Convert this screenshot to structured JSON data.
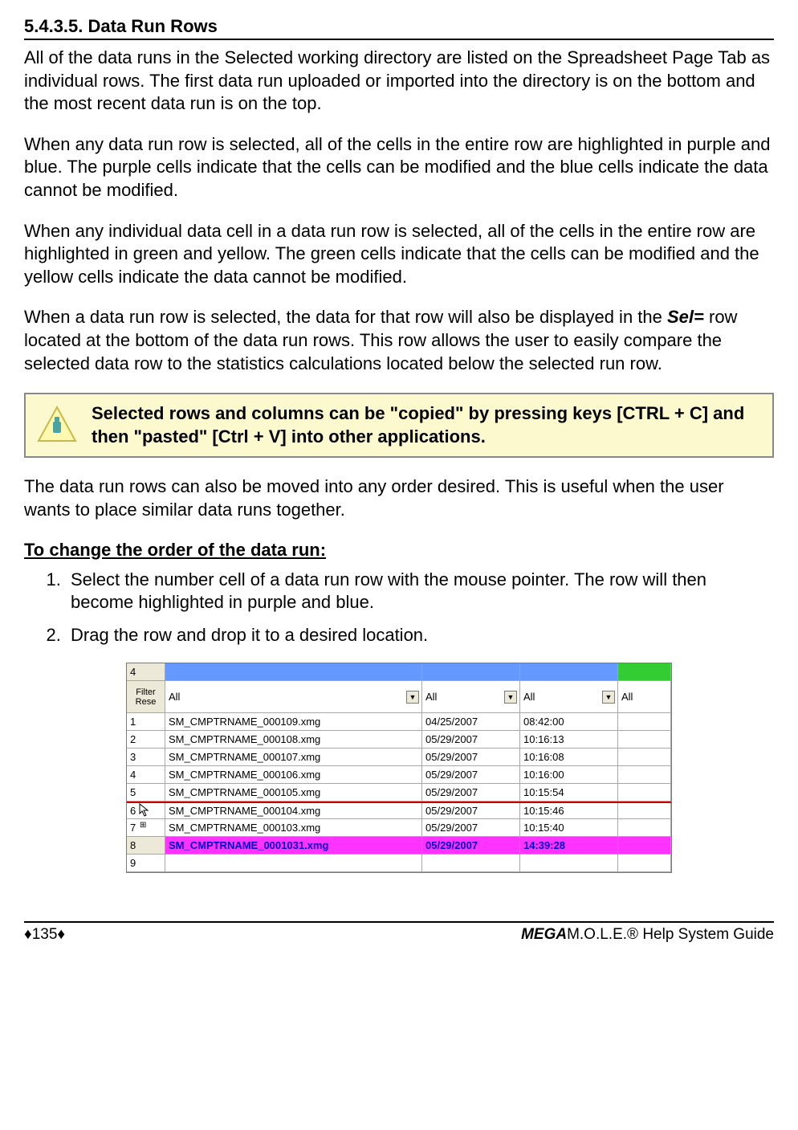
{
  "section": {
    "heading": "5.4.3.5. Data Run Rows",
    "p1": "All of the data runs in the Selected working directory are listed on the Spreadsheet Page Tab as individual rows. The first data run uploaded or imported into the directory is on the bottom and the most recent data run is on the top.",
    "p2": "When any data run row is selected, all of the cells in the entire row are highlighted in purple and blue. The purple cells indicate that the cells can be modified and the blue cells indicate the data cannot be modified.",
    "p3": "When any individual data cell in a data run row is selected, all of the cells in the entire row are highlighted in green and yellow. The green cells indicate that the cells can be modified and the yellow cells indicate the data cannot be modified.",
    "p4_prefix": "When a data run row is selected, the data for that row will also be displayed in the ",
    "p4_emph": "Sel=",
    "p4_suffix": " row located at the bottom of the data run rows. This row allows the user to easily compare the selected data row to the statistics calculations located below the selected run row.",
    "tip": "Selected rows and columns can be \"copied\" by pressing keys [CTRL + C] and then \"pasted\" [Ctrl + V] into other applications.",
    "p5": "The data run rows can also be moved into any order desired. This is useful when the user wants to place similar data runs together.",
    "subheading": "To change the order of the data run:",
    "steps": [
      "Select the number cell of a data run row with the mouse pointer. The row will then become highlighted in purple and blue.",
      "Drag the row and drop it to a desired location."
    ]
  },
  "spreadsheet": {
    "header_idx": "4",
    "filter_label_1": "Filter",
    "filter_label_2": "Rese",
    "filter_value": "All",
    "columns": [
      "name",
      "date",
      "time",
      "extra"
    ],
    "rows": [
      {
        "idx": "1",
        "name": "SM_CMPTRNAME_000109.xmg",
        "date": "04/25/2007",
        "time": "08:42:00",
        "extra": ""
      },
      {
        "idx": "2",
        "name": "SM_CMPTRNAME_000108.xmg",
        "date": "05/29/2007",
        "time": "10:16:13",
        "extra": ""
      },
      {
        "idx": "3",
        "name": "SM_CMPTRNAME_000107.xmg",
        "date": "05/29/2007",
        "time": "10:16:08",
        "extra": ""
      },
      {
        "idx": "4",
        "name": "SM_CMPTRNAME_000106.xmg",
        "date": "05/29/2007",
        "time": "10:16:00",
        "extra": ""
      },
      {
        "idx": "5",
        "name": "SM_CMPTRNAME_000105.xmg",
        "date": "05/29/2007",
        "time": "10:15:54",
        "extra": ""
      },
      {
        "idx": "6",
        "name": "SM_CMPTRNAME_000104.xmg",
        "date": "05/29/2007",
        "time": "10:15:46",
        "extra": ""
      },
      {
        "idx": "7",
        "name": "SM_CMPTRNAME_000103.xmg",
        "date": "05/29/2007",
        "time": "10:15:40",
        "extra": ""
      },
      {
        "idx": "8",
        "name": "SM_CMPTRNAME_0001031.xmg",
        "date": "05/29/2007",
        "time": "14:39:28",
        "extra": "",
        "selected": true
      },
      {
        "idx": "9",
        "name": "",
        "date": "",
        "time": "",
        "extra": ""
      }
    ],
    "colors": {
      "header_blue": "#6699ff",
      "header_green": "#33cc33",
      "row_header_bg": "#ece9d8",
      "selected_bg": "#ff33ff",
      "selected_fg": "#0000cc",
      "red_line": "#cc0000",
      "border": "#aca899"
    }
  },
  "footer": {
    "page": "♦135♦",
    "mega": "MEGA",
    "rest": "M.O.L.E.® Help System Guide"
  }
}
